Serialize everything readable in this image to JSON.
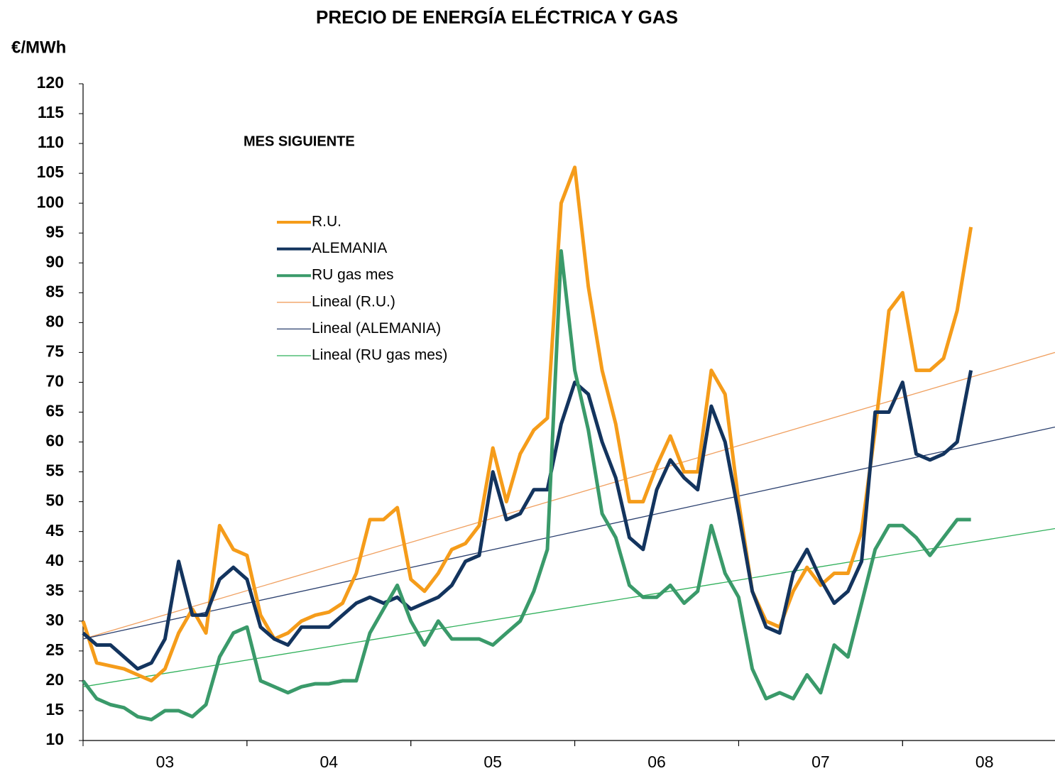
{
  "chart_data": {
    "type": "line",
    "title": "PRECIO DE ENERGÍA ELÉCTRICA Y GAS",
    "y_label": "€/MWh",
    "annotation": "MES SIGUIENTE",
    "x": [
      2003.0,
      2003.083,
      2003.167,
      2003.25,
      2003.333,
      2003.417,
      2003.5,
      2003.583,
      2003.667,
      2003.75,
      2003.833,
      2003.917,
      2004.0,
      2004.083,
      2004.167,
      2004.25,
      2004.333,
      2004.417,
      2004.5,
      2004.583,
      2004.667,
      2004.75,
      2004.833,
      2004.917,
      2005.0,
      2005.083,
      2005.167,
      2005.25,
      2005.333,
      2005.417,
      2005.5,
      2005.583,
      2005.667,
      2005.75,
      2005.833,
      2005.917,
      2006.0,
      2006.083,
      2006.167,
      2006.25,
      2006.333,
      2006.417,
      2006.5,
      2006.583,
      2006.667,
      2006.75,
      2006.833,
      2006.917,
      2007.0,
      2007.083,
      2007.167,
      2007.25,
      2007.333,
      2007.417,
      2007.5,
      2007.583,
      2007.667,
      2007.75,
      2007.833,
      2007.917,
      2008.0,
      2008.083,
      2008.167,
      2008.25,
      2008.333,
      2008.417
    ],
    "series": [
      {
        "name": "R.U.",
        "color": "#f59c1a",
        "width": 5,
        "values": [
          30,
          23,
          22.5,
          22,
          21,
          20,
          22,
          28,
          32,
          28,
          46,
          42,
          41,
          31,
          27,
          28,
          30,
          31,
          31.5,
          33,
          38,
          47,
          47,
          49,
          37,
          35,
          38,
          42,
          43,
          46,
          59,
          50,
          58,
          62,
          64,
          100,
          106,
          86,
          72,
          63,
          50,
          50,
          56,
          61,
          55,
          55,
          72,
          68,
          50,
          35,
          30,
          29,
          35,
          39,
          36,
          38,
          38,
          45,
          62,
          82,
          85,
          72,
          72,
          74,
          82,
          96
        ]
      },
      {
        "name": "ALEMANIA",
        "color": "#13345e",
        "width": 5,
        "values": [
          28,
          26,
          26,
          24,
          22,
          23,
          27,
          40,
          31,
          31,
          37,
          39,
          37,
          29,
          27,
          26,
          29,
          29,
          29,
          31,
          33,
          34,
          33,
          34,
          32,
          33,
          34,
          36,
          40,
          41,
          55,
          47,
          48,
          52,
          52,
          63,
          70,
          68,
          60,
          54,
          44,
          42,
          52,
          57,
          54,
          52,
          66,
          60,
          48,
          35,
          29,
          28,
          38,
          42,
          37,
          33,
          35,
          40,
          65,
          65,
          70,
          58,
          57,
          58,
          60,
          72
        ]
      },
      {
        "name": "RU gas mes",
        "color": "#3a9a6a",
        "width": 5,
        "values": [
          20,
          17,
          16,
          15.5,
          14,
          13.5,
          15,
          15,
          14,
          16,
          24,
          28,
          29,
          20,
          19,
          18,
          19,
          19.5,
          19.5,
          20,
          20,
          28,
          32,
          36,
          30,
          26,
          30,
          27,
          27,
          27,
          26,
          28,
          30,
          35,
          42,
          92,
          72,
          62,
          48,
          44,
          36,
          34,
          34,
          36,
          33,
          35,
          46,
          38,
          34,
          22,
          17,
          18,
          17,
          21,
          18,
          26,
          24,
          33,
          42,
          46,
          46,
          44,
          41,
          44,
          47,
          47
        ]
      },
      {
        "name": "Lineal (R.U.)",
        "color": "#f0a060",
        "width": 1.3,
        "x": [
          2003.0,
          2008.93
        ],
        "values": [
          27,
          75
        ]
      },
      {
        "name": "Lineal (ALEMANIA)",
        "color": "#2a3f6e",
        "width": 1.3,
        "x": [
          2003.0,
          2008.93
        ],
        "values": [
          27,
          62.5
        ]
      },
      {
        "name": "Lineal (RU gas mes)",
        "color": "#2fb05a",
        "width": 1.3,
        "x": [
          2003.0,
          2008.93
        ],
        "values": [
          19,
          45.5
        ]
      }
    ],
    "xlim": [
      2003.0,
      2008.93
    ],
    "xticks": [
      {
        "value": 2003.5,
        "label": "03"
      },
      {
        "value": 2004.5,
        "label": "04"
      },
      {
        "value": 2005.5,
        "label": "05"
      },
      {
        "value": 2006.5,
        "label": "06"
      },
      {
        "value": 2007.5,
        "label": "07"
      },
      {
        "value": 2008.5,
        "label": "08"
      }
    ],
    "ylim": [
      10,
      120
    ],
    "yticks": [
      10,
      15,
      20,
      25,
      30,
      35,
      40,
      45,
      50,
      55,
      60,
      65,
      70,
      75,
      80,
      85,
      90,
      95,
      100,
      105,
      110,
      115,
      120
    ],
    "grid": false,
    "legend": "upper-left"
  }
}
